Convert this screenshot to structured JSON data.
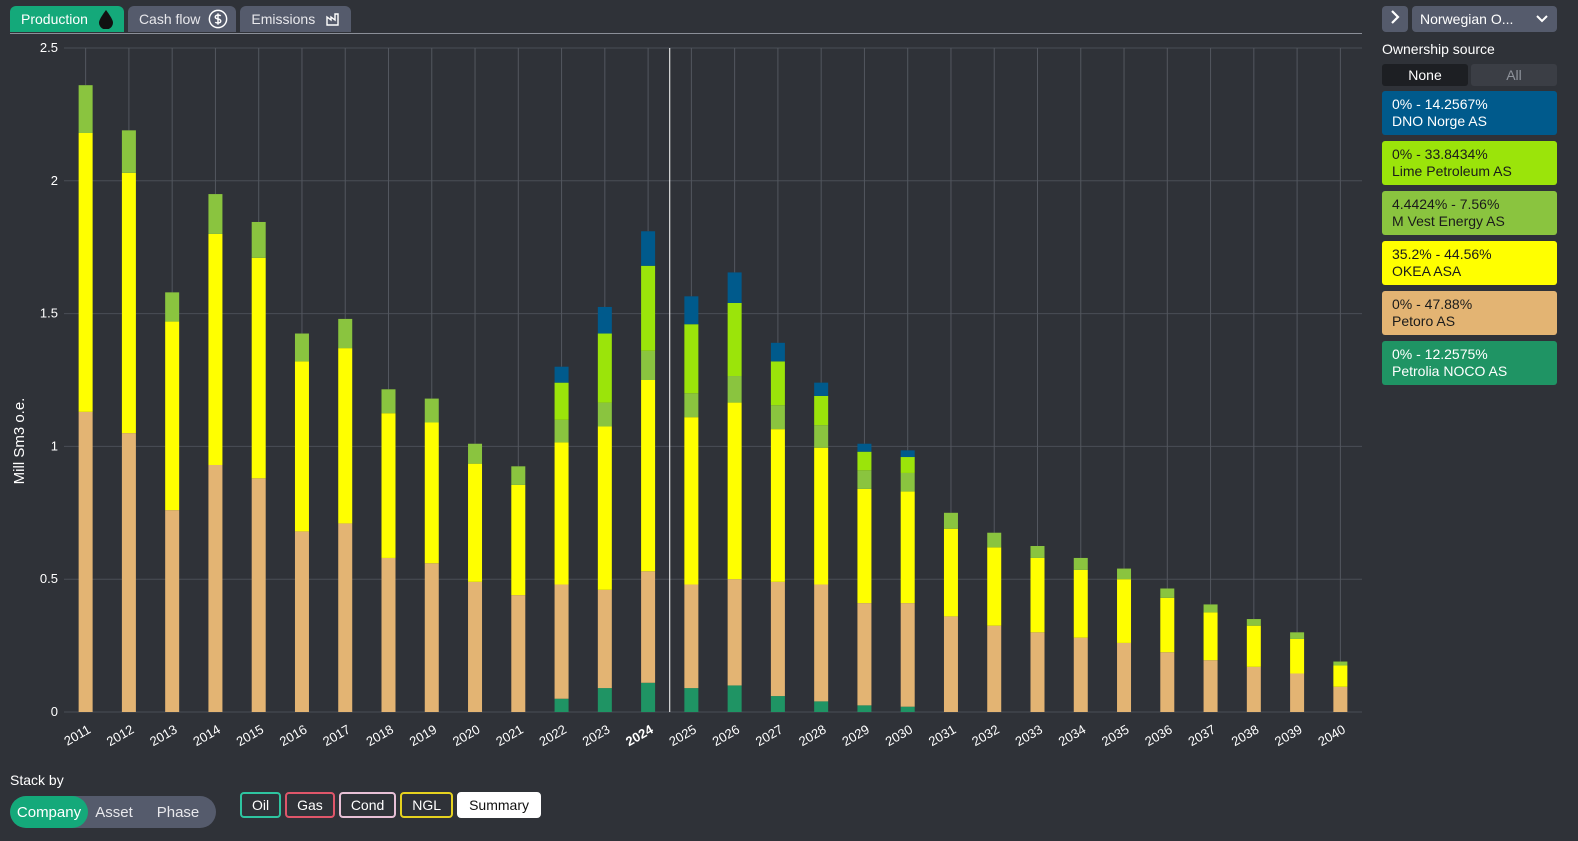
{
  "tabs": [
    {
      "label": "Production",
      "icon": "oil-drop-icon",
      "active": true
    },
    {
      "label": "Cash flow",
      "icon": "dollar-icon",
      "active": false
    },
    {
      "label": "Emissions",
      "icon": "factory-icon",
      "active": false
    }
  ],
  "sidebar": {
    "select_value": "Norwegian O...",
    "ownership_title": "Ownership source",
    "toggle": {
      "none": "None",
      "all": "All"
    },
    "legend": [
      {
        "range": "0% - 14.2567%",
        "name": "DNO Norge AS",
        "color": "#005a8c",
        "text": "#ffffff"
      },
      {
        "range": "0% - 33.8434%",
        "name": "Lime Petroleum AS",
        "color": "#9be40a",
        "text": "#1b1b1b"
      },
      {
        "range": "4.4424% - 7.56%",
        "name": "M Vest Energy AS",
        "color": "#8ac43f",
        "text": "#1b1b1b"
      },
      {
        "range": "35.2% - 44.56%",
        "name": "OKEA ASA",
        "color": "#ffff00",
        "text": "#1b1b1b"
      },
      {
        "range": "0% - 47.88%",
        "name": "Petoro AS",
        "color": "#e3b473",
        "text": "#1b1b1b"
      },
      {
        "range": "0% - 12.2575%",
        "name": "Petrolia NOCO AS",
        "color": "#1f9464",
        "text": "#ffffff"
      }
    ]
  },
  "footer": {
    "stack_by_label": "Stack by",
    "stack_options": [
      "Company",
      "Asset",
      "Phase"
    ],
    "phases": [
      {
        "label": "Oil",
        "color": "#2ec4a0",
        "fill": "transparent"
      },
      {
        "label": "Gas",
        "color": "#e0566a",
        "fill": "transparent"
      },
      {
        "label": "Cond",
        "color": "#e8c0d6",
        "fill": "transparent"
      },
      {
        "label": "NGL",
        "color": "#e6d21f",
        "fill": "transparent"
      },
      {
        "label": "Summary",
        "color": "#ffffff",
        "fill": "#ffffff"
      }
    ]
  },
  "chart_data": {
    "type": "bar",
    "stacked": true,
    "ylabel": "Mill Sm3 o.e.",
    "ylim": [
      0,
      2.5
    ],
    "yticks": [
      "0",
      "0.5",
      "1",
      "1.5",
      "2",
      "2.5"
    ],
    "highlight_category": "2024",
    "categories": [
      "2011",
      "2012",
      "2013",
      "2014",
      "2015",
      "2016",
      "2017",
      "2018",
      "2019",
      "2020",
      "2021",
      "2022",
      "2023",
      "2024",
      "2025",
      "2026",
      "2027",
      "2028",
      "2029",
      "2030",
      "2031",
      "2032",
      "2033",
      "2034",
      "2035",
      "2036",
      "2037",
      "2038",
      "2039",
      "2040"
    ],
    "series": [
      {
        "name": "Petrolia NOCO AS",
        "color": "#1f9464",
        "values": [
          0,
          0,
          0,
          0,
          0,
          0,
          0,
          0,
          0,
          0,
          0,
          0.05,
          0.09,
          0.11,
          0.09,
          0.1,
          0.06,
          0.04,
          0.025,
          0.02,
          0,
          0,
          0,
          0,
          0,
          0,
          0,
          0,
          0,
          0
        ]
      },
      {
        "name": "Petoro AS",
        "color": "#e3b473",
        "values": [
          1.13,
          1.05,
          0.76,
          0.93,
          0.88,
          0.68,
          0.71,
          0.58,
          0.56,
          0.49,
          0.44,
          0.43,
          0.37,
          0.42,
          0.39,
          0.4,
          0.43,
          0.44,
          0.385,
          0.39,
          0.36,
          0.325,
          0.3,
          0.28,
          0.26,
          0.225,
          0.195,
          0.17,
          0.145,
          0.095
        ]
      },
      {
        "name": "OKEA ASA",
        "color": "#ffff00",
        "values": [
          1.05,
          0.98,
          0.71,
          0.87,
          0.83,
          0.64,
          0.66,
          0.545,
          0.53,
          0.445,
          0.415,
          0.535,
          0.615,
          0.72,
          0.63,
          0.665,
          0.575,
          0.515,
          0.43,
          0.42,
          0.33,
          0.295,
          0.28,
          0.255,
          0.24,
          0.205,
          0.18,
          0.155,
          0.13,
          0.08
        ]
      },
      {
        "name": "M Vest Energy AS",
        "color": "#8ac43f",
        "values": [
          0.18,
          0.16,
          0.11,
          0.15,
          0.135,
          0.105,
          0.11,
          0.09,
          0.09,
          0.075,
          0.07,
          0.085,
          0.09,
          0.11,
          0.09,
          0.1,
          0.09,
          0.085,
          0.07,
          0.07,
          0.06,
          0.055,
          0.045,
          0.045,
          0.04,
          0.035,
          0.03,
          0.025,
          0.025,
          0.015
        ]
      },
      {
        "name": "Lime Petroleum AS",
        "color": "#9be40a",
        "values": [
          0,
          0,
          0,
          0,
          0,
          0,
          0,
          0,
          0,
          0,
          0,
          0.14,
          0.26,
          0.32,
          0.26,
          0.275,
          0.165,
          0.11,
          0.07,
          0.06,
          0,
          0,
          0,
          0,
          0,
          0,
          0,
          0,
          0,
          0
        ]
      },
      {
        "name": "DNO Norge AS",
        "color": "#005a8c",
        "values": [
          0,
          0,
          0,
          0,
          0,
          0,
          0,
          0,
          0,
          0,
          0,
          0.06,
          0.1,
          0.13,
          0.105,
          0.115,
          0.07,
          0.05,
          0.03,
          0.025,
          0,
          0,
          0,
          0,
          0,
          0,
          0,
          0,
          0,
          0
        ]
      }
    ]
  }
}
